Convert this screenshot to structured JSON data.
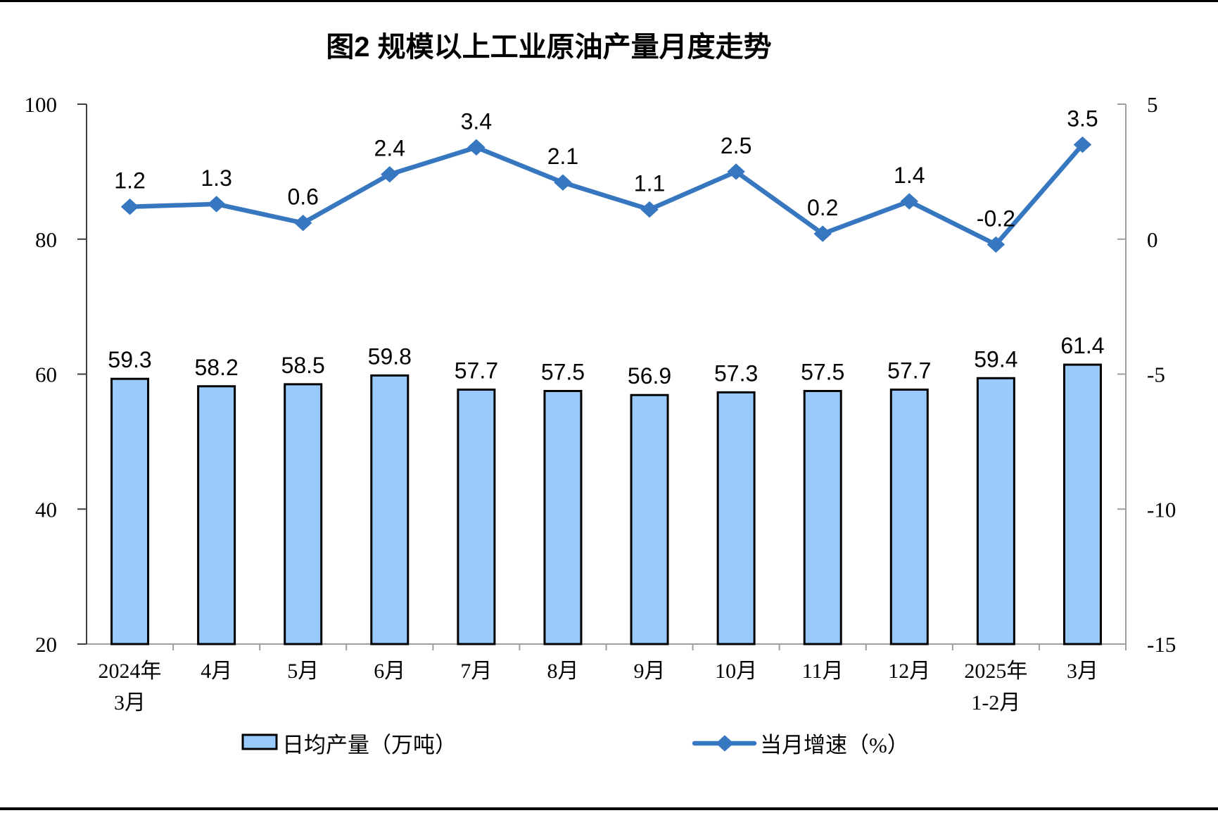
{
  "chart_data": {
    "type": "bar+line",
    "title": "图2 规模以上工业原油产量月度走势",
    "categories": [
      "2024年\n3月",
      "4月",
      "5月",
      "6月",
      "7月",
      "8月",
      "9月",
      "10月",
      "11月",
      "12月",
      "2025年\n1-2月",
      "3月"
    ],
    "series": [
      {
        "name": "日均产量（万吨）",
        "type": "bar",
        "axis": "left",
        "values": [
          59.3,
          58.2,
          58.5,
          59.8,
          57.7,
          57.5,
          56.9,
          57.3,
          57.5,
          57.7,
          59.4,
          61.4
        ]
      },
      {
        "name": "当月增速（%）",
        "type": "line",
        "axis": "right",
        "values": [
          1.2,
          1.3,
          0.6,
          2.4,
          3.4,
          2.1,
          1.1,
          2.5,
          0.2,
          1.4,
          -0.2,
          3.5
        ]
      }
    ],
    "left_axis": {
      "min": 20,
      "max": 100,
      "ticks": [
        20,
        40,
        60,
        80,
        100
      ]
    },
    "right_axis": {
      "min": -15,
      "max": 5,
      "ticks": [
        -15,
        -10,
        -5,
        0,
        5
      ]
    },
    "legend": [
      "日均产量（万吨）",
      "当月增速（%）"
    ],
    "grid": "off",
    "legend_position": "bottom",
    "colors": {
      "bar_fill": "#9ACAFB",
      "bar_border": "#000000",
      "line": "#3777C0",
      "text": "#000000",
      "axis_dark": "#3f3f3f",
      "axis_grey": "#9e9e9e"
    }
  }
}
